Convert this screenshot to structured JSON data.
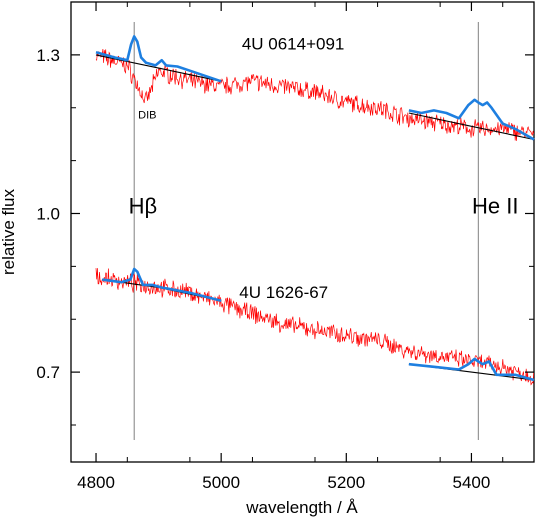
{
  "chart_data": {
    "type": "line",
    "xlabel": "wavelength / Å",
    "ylabel": "relative flux",
    "xlim": [
      4760,
      5500
    ],
    "ylim": [
      0.53,
      1.4
    ],
    "xticks": [
      4800,
      5000,
      5200,
      5400
    ],
    "xtick_labels": [
      "4800",
      "5000",
      "5200",
      "5400"
    ],
    "yticks": [
      0.7,
      1.0,
      1.3
    ],
    "ytick_labels": [
      "0.7",
      "1.0",
      "1.3"
    ],
    "minor_yticks": [
      0.6,
      0.8,
      0.9,
      1.1,
      1.2
    ],
    "grid": false,
    "legend": "none",
    "colors": {
      "observed": "#ff0000",
      "model": "#1e7fe0",
      "continuum": "#000000",
      "reference_line": "#808080"
    },
    "vertical_lines": [
      {
        "x": 4861,
        "label": "Hβ"
      },
      {
        "x": 5411,
        "label": "He II"
      }
    ],
    "annotations": [
      {
        "text": "4U 0614+091",
        "x": 5115,
        "y": 1.31
      },
      {
        "text": "DIB",
        "x": 4882,
        "y": 1.18
      },
      {
        "text": "4U 1626-67",
        "x": 5100,
        "y": 0.84
      },
      {
        "text": "Hβ",
        "x": 4875,
        "y": 1.0
      },
      {
        "text": "He II",
        "x": 5438,
        "y": 1.0
      }
    ],
    "series": [
      {
        "role": "observed",
        "x": [
          4800,
          4850,
          4880,
          4900,
          4950,
          5000,
          5050,
          5100,
          5150,
          5200,
          5250,
          5300,
          5350,
          5400,
          5450,
          5500
        ],
        "y": [
          1.3,
          1.28,
          1.21,
          1.27,
          1.25,
          1.24,
          1.25,
          1.24,
          1.23,
          1.21,
          1.2,
          1.18,
          1.17,
          1.16,
          1.16,
          1.15
        ]
      },
      {
        "role": "model",
        "x": [
          4800,
          4830,
          4850,
          4856,
          4861,
          4866,
          4872,
          4880,
          4895,
          4905,
          4912,
          4930,
          4950,
          5000
        ],
        "y": [
          1.305,
          1.295,
          1.29,
          1.32,
          1.335,
          1.325,
          1.295,
          1.285,
          1.28,
          1.29,
          1.28,
          1.278,
          1.27,
          1.25
        ]
      },
      {
        "role": "continuum",
        "x": [
          4800,
          4900,
          5000
        ],
        "y": [
          1.3,
          1.275,
          1.25
        ]
      },
      {
        "role": "model",
        "x": [
          5300,
          5320,
          5340,
          5360,
          5380,
          5395,
          5405,
          5411,
          5418,
          5425,
          5432,
          5450,
          5470,
          5500
        ],
        "y": [
          1.195,
          1.19,
          1.195,
          1.19,
          1.18,
          1.205,
          1.215,
          1.21,
          1.205,
          1.21,
          1.2,
          1.17,
          1.16,
          1.14
        ]
      },
      {
        "role": "continuum",
        "x": [
          5300,
          5400,
          5500
        ],
        "y": [
          1.19,
          1.165,
          1.14
        ]
      },
      {
        "role": "observed",
        "x": [
          4800,
          4850,
          4900,
          4950,
          5000,
          5050,
          5100,
          5150,
          5200,
          5250,
          5300,
          5350,
          5400,
          5450,
          5500
        ],
        "y": [
          0.88,
          0.87,
          0.86,
          0.85,
          0.83,
          0.81,
          0.79,
          0.78,
          0.77,
          0.76,
          0.74,
          0.73,
          0.72,
          0.71,
          0.69
        ]
      },
      {
        "role": "model",
        "x": [
          4810,
          4840,
          4855,
          4861,
          4866,
          4875,
          4890,
          4905,
          4915,
          4950,
          5000
        ],
        "y": [
          0.875,
          0.87,
          0.875,
          0.895,
          0.89,
          0.865,
          0.865,
          0.86,
          0.858,
          0.85,
          0.835
        ]
      },
      {
        "role": "continuum",
        "x": [
          4810,
          4900,
          5000
        ],
        "y": [
          0.875,
          0.86,
          0.835
        ]
      },
      {
        "role": "model",
        "x": [
          5300,
          5340,
          5380,
          5395,
          5405,
          5411,
          5418,
          5428,
          5440,
          5470,
          5500
        ],
        "y": [
          0.715,
          0.71,
          0.705,
          0.715,
          0.725,
          0.72,
          0.715,
          0.72,
          0.695,
          0.695,
          0.685
        ]
      },
      {
        "role": "continuum",
        "x": [
          5300,
          5400,
          5500
        ],
        "y": [
          0.715,
          0.7,
          0.685
        ]
      }
    ]
  }
}
